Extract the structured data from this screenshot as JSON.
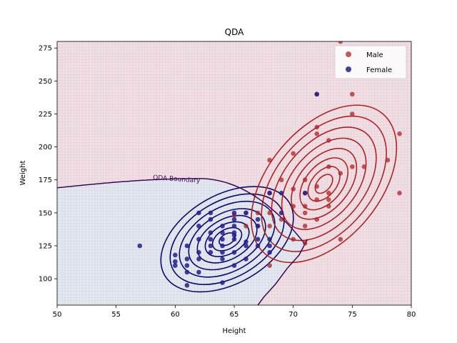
{
  "chart_data": {
    "type": "scatter",
    "title": "QDA",
    "xlabel": "Height",
    "ylabel": "Weight",
    "xlim": [
      50,
      80
    ],
    "ylim": [
      80,
      280
    ],
    "xticks": [
      50,
      55,
      60,
      65,
      70,
      75,
      80
    ],
    "yticks": [
      100,
      125,
      150,
      175,
      200,
      225,
      250,
      275
    ],
    "legend_position": "top-right",
    "grid": false,
    "annotation": "QDA Boundary",
    "colors": {
      "male": "#b22222",
      "female": "#1f1f8f",
      "male_region": "#f2dfe4",
      "female_region": "#e3e8f1",
      "boundary": "#3b0a57",
      "male_contour": "#b22222",
      "female_contour": "#0b0b6e"
    },
    "series": [
      {
        "name": "Male",
        "points": [
          [
            74,
            280
          ],
          [
            75,
            240
          ],
          [
            72,
            240
          ],
          [
            75,
            225
          ],
          [
            72,
            215
          ],
          [
            72,
            210
          ],
          [
            79,
            210
          ],
          [
            73,
            205
          ],
          [
            70,
            195
          ],
          [
            76,
            185
          ],
          [
            75,
            185
          ],
          [
            78,
            190
          ],
          [
            68,
            190
          ],
          [
            73,
            185
          ],
          [
            74,
            180
          ],
          [
            71,
            175
          ],
          [
            69,
            175
          ],
          [
            72,
            170
          ],
          [
            70,
            168
          ],
          [
            71,
            165
          ],
          [
            73,
            165
          ],
          [
            79,
            165
          ],
          [
            73,
            160
          ],
          [
            72,
            160
          ],
          [
            68,
            165
          ],
          [
            71,
            155
          ],
          [
            73,
            155
          ],
          [
            70,
            155
          ],
          [
            71,
            150
          ],
          [
            72,
            145
          ],
          [
            66,
            150
          ],
          [
            68,
            150
          ],
          [
            67,
            150
          ],
          [
            69,
            145
          ],
          [
            68,
            140
          ],
          [
            71,
            140
          ],
          [
            66,
            140
          ],
          [
            70,
            130
          ],
          [
            74,
            130
          ],
          [
            71,
            127
          ],
          [
            68,
            110
          ],
          [
            65,
            148
          ],
          [
            67,
            140
          ]
        ]
      },
      {
        "name": "Female",
        "points": [
          [
            72,
            240
          ],
          [
            71,
            165
          ],
          [
            69,
            150
          ],
          [
            68,
            165
          ],
          [
            69,
            165
          ],
          [
            67,
            145
          ],
          [
            67,
            140
          ],
          [
            66,
            150
          ],
          [
            65,
            150
          ],
          [
            65,
            145
          ],
          [
            65,
            140
          ],
          [
            65,
            135
          ],
          [
            65,
            133
          ],
          [
            65,
            130
          ],
          [
            66,
            125
          ],
          [
            66,
            128
          ],
          [
            67,
            130
          ],
          [
            68,
            130
          ],
          [
            68,
            125
          ],
          [
            67,
            125
          ],
          [
            64,
            135
          ],
          [
            64,
            140
          ],
          [
            64,
            130
          ],
          [
            64,
            125
          ],
          [
            64,
            120
          ],
          [
            64,
            115
          ],
          [
            63,
            135
          ],
          [
            63,
            130
          ],
          [
            63,
            125
          ],
          [
            63,
            120
          ],
          [
            63,
            145
          ],
          [
            62,
            150
          ],
          [
            62,
            140
          ],
          [
            62,
            130
          ],
          [
            62,
            120
          ],
          [
            62,
            115
          ],
          [
            62,
            105
          ],
          [
            61,
            125
          ],
          [
            61,
            115
          ],
          [
            61,
            110
          ],
          [
            61,
            105
          ],
          [
            61,
            95
          ],
          [
            60,
            118
          ],
          [
            60,
            110
          ],
          [
            60,
            113
          ],
          [
            57,
            125
          ],
          [
            64,
            97
          ],
          [
            65,
            110
          ],
          [
            65,
            120
          ],
          [
            66,
            115
          ],
          [
            63,
            150
          ],
          [
            68,
            120
          ]
        ]
      }
    ]
  }
}
